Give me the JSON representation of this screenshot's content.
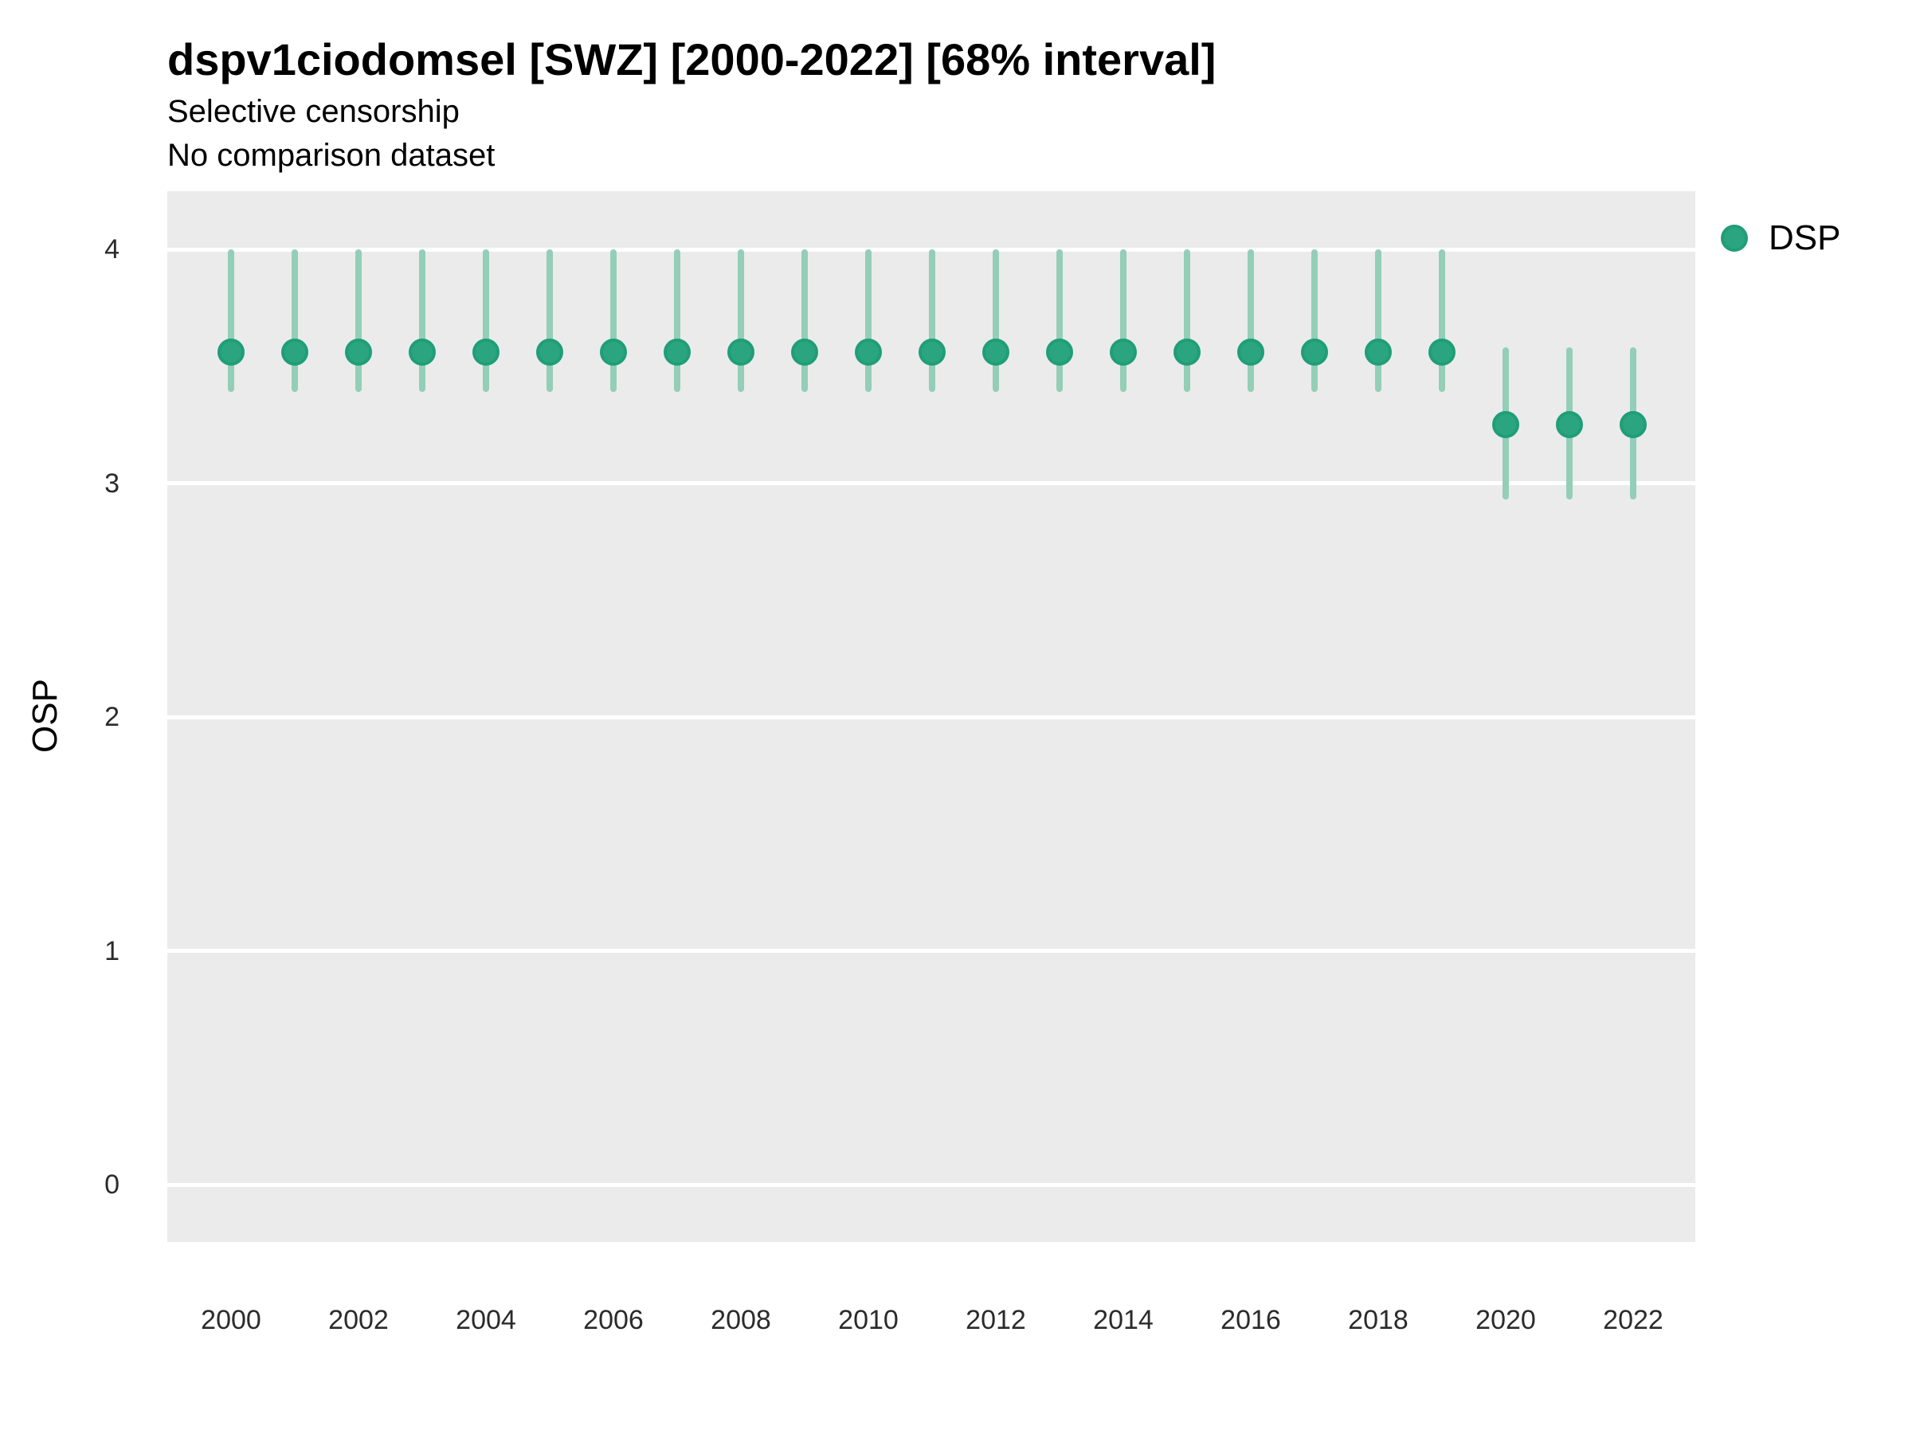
{
  "header": {
    "title": "dspv1ciodomsel [SWZ] [2000-2022] [68% interval]",
    "subtitle": "Selective censorship",
    "subtitle2": "No comparison dataset"
  },
  "legend": {
    "label": "DSP"
  },
  "colors": {
    "panel_bg": "#ebebeb",
    "gridline": "#ffffff",
    "point_fill": "#2ba580",
    "point_stroke": "#1f9e77",
    "interval_bar": "#94ceb8",
    "tick_text": "#2b2b2b",
    "text": "#000000"
  },
  "chart_data": {
    "type": "scatter",
    "title": "dspv1ciodomsel [SWZ] [2000-2022] [68% interval]",
    "subtitle": "Selective censorship",
    "caption": "No comparison dataset",
    "xlabel": "",
    "ylabel": "OSP",
    "interval_level": "68%",
    "grid": "horizontal-major-only",
    "legend_position": "right",
    "xlim": [
      1999,
      2023
    ],
    "ylim": [
      -0.25,
      4.25
    ],
    "yticks": [
      0,
      1,
      2,
      3,
      4
    ],
    "xticks": [
      2000,
      2002,
      2004,
      2006,
      2008,
      2010,
      2012,
      2014,
      2016,
      2018,
      2020,
      2022
    ],
    "series": [
      {
        "name": "DSP",
        "points": [
          {
            "x": 2000,
            "y": 3.56,
            "lo": 3.39,
            "hi": 4.0
          },
          {
            "x": 2001,
            "y": 3.56,
            "lo": 3.39,
            "hi": 4.0
          },
          {
            "x": 2002,
            "y": 3.56,
            "lo": 3.39,
            "hi": 4.0
          },
          {
            "x": 2003,
            "y": 3.56,
            "lo": 3.39,
            "hi": 4.0
          },
          {
            "x": 2004,
            "y": 3.56,
            "lo": 3.39,
            "hi": 4.0
          },
          {
            "x": 2005,
            "y": 3.56,
            "lo": 3.39,
            "hi": 4.0
          },
          {
            "x": 2006,
            "y": 3.56,
            "lo": 3.39,
            "hi": 4.0
          },
          {
            "x": 2007,
            "y": 3.56,
            "lo": 3.39,
            "hi": 4.0
          },
          {
            "x": 2008,
            "y": 3.56,
            "lo": 3.39,
            "hi": 4.0
          },
          {
            "x": 2009,
            "y": 3.56,
            "lo": 3.39,
            "hi": 4.0
          },
          {
            "x": 2010,
            "y": 3.56,
            "lo": 3.39,
            "hi": 4.0
          },
          {
            "x": 2011,
            "y": 3.56,
            "lo": 3.39,
            "hi": 4.0
          },
          {
            "x": 2012,
            "y": 3.56,
            "lo": 3.39,
            "hi": 4.0
          },
          {
            "x": 2013,
            "y": 3.56,
            "lo": 3.39,
            "hi": 4.0
          },
          {
            "x": 2014,
            "y": 3.56,
            "lo": 3.39,
            "hi": 4.0
          },
          {
            "x": 2015,
            "y": 3.56,
            "lo": 3.39,
            "hi": 4.0
          },
          {
            "x": 2016,
            "y": 3.56,
            "lo": 3.39,
            "hi": 4.0
          },
          {
            "x": 2017,
            "y": 3.56,
            "lo": 3.39,
            "hi": 4.0
          },
          {
            "x": 2018,
            "y": 3.56,
            "lo": 3.39,
            "hi": 4.0
          },
          {
            "x": 2019,
            "y": 3.56,
            "lo": 3.39,
            "hi": 4.0
          },
          {
            "x": 2020,
            "y": 3.25,
            "lo": 2.93,
            "hi": 3.58
          },
          {
            "x": 2021,
            "y": 3.25,
            "lo": 2.93,
            "hi": 3.58
          },
          {
            "x": 2022,
            "y": 3.25,
            "lo": 2.93,
            "hi": 3.58
          }
        ]
      }
    ]
  }
}
